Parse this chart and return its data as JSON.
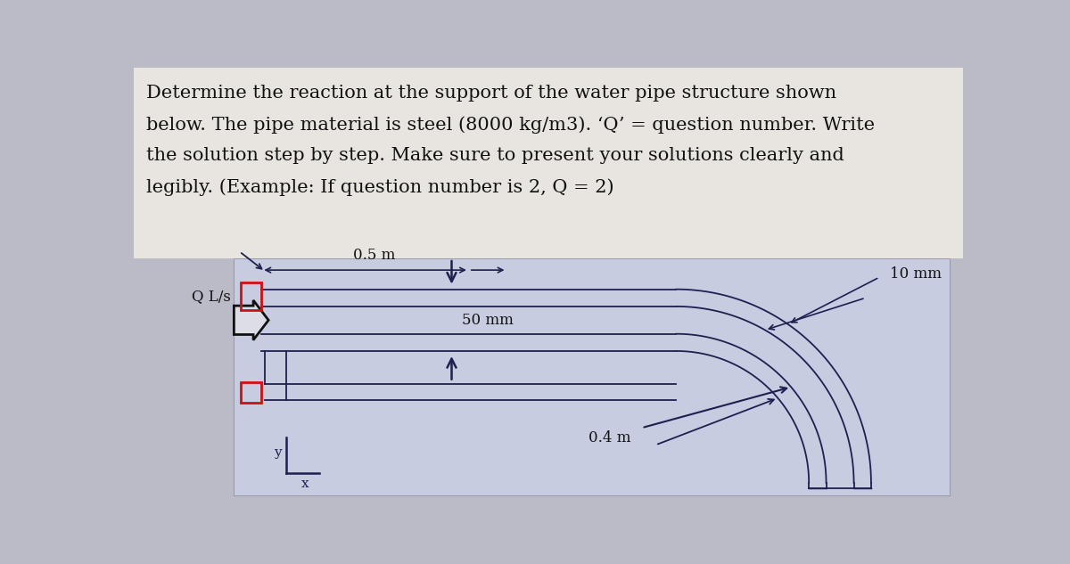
{
  "bg_color": "#bbbbc8",
  "diagram_bg": "#c8cce0",
  "title_lines": [
    "Determine the reaction at the support of the water pipe structure shown",
    "below. The pipe material is steel (8000 kg/m3). ‘Q’ = question number. Write",
    "the solution step by step. Make sure to present your solutions clearly and",
    "legibly. (Example: If question number is 2, Q = 2)"
  ],
  "title_fontsize": 15.0,
  "pipe_color": "#1e2050",
  "red_box_color": "#cc1111",
  "arrow_color": "#111120",
  "dim_color": "#111120",
  "label_05m": "0.5 m",
  "label_50mm": "50 mm",
  "label_10mm": "10 mm",
  "label_04m": "0.4 m",
  "label_QL": "Q L/s"
}
